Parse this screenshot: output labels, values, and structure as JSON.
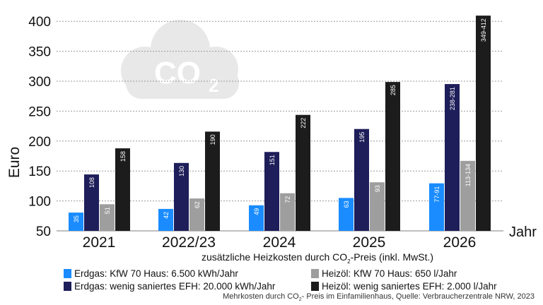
{
  "chart_data": {
    "type": "bar",
    "ylabel": "Euro",
    "xlabel": "Jahr",
    "yticks": [
      50,
      100,
      150,
      200,
      250,
      300,
      350,
      400
    ],
    "ylim": [
      50,
      400
    ],
    "grid": true,
    "categories": [
      "2021",
      "2022/23",
      "2024",
      "2025",
      "2026"
    ],
    "series": [
      {
        "name": "Erdgas: KfW 70 Haus: 6.500 kWh/Jahr",
        "color": "#1a8cff",
        "values": [
          35,
          42,
          49,
          63,
          91
        ],
        "labels": [
          "35",
          "42",
          "49",
          "63",
          "77-91"
        ]
      },
      {
        "name": "Erdgas: wenig saniertes EFH: 20.000 kWh/Jahr",
        "color": "#1e1e5a",
        "values": [
          108,
          130,
          151,
          195,
          281
        ],
        "labels": [
          "108",
          "130",
          "151",
          "195",
          "238-281"
        ]
      },
      {
        "name": "Heizöl: KfW 70 Haus: 650 l/Jahr",
        "color": "#9e9e9e",
        "values": [
          51,
          62,
          72,
          93,
          134
        ],
        "labels": [
          "51",
          "62",
          "72",
          "93",
          "113-134"
        ]
      },
      {
        "name": "Heizöl: wenig saniertes EFH: 2.000 l/Jahr",
        "color": "#1c1c1c",
        "values": [
          158,
          190,
          222,
          285,
          412
        ],
        "labels": [
          "158",
          "190",
          "222",
          "285",
          "349-412"
        ]
      }
    ],
    "subtitle_main": "zusätzliche Heizkosten durch CO",
    "subtitle_sub": "2",
    "subtitle_rest": "-Preis (inkl. MwSt.)",
    "legend_placement": "bottom",
    "watermark": "CO2"
  },
  "source": {
    "main": "Mehrkosten durch CO",
    "sub": "2",
    "rest": "- Preis im Einfamilienhaus, Quelle: Verbraucherzentrale NRW, 2023"
  }
}
